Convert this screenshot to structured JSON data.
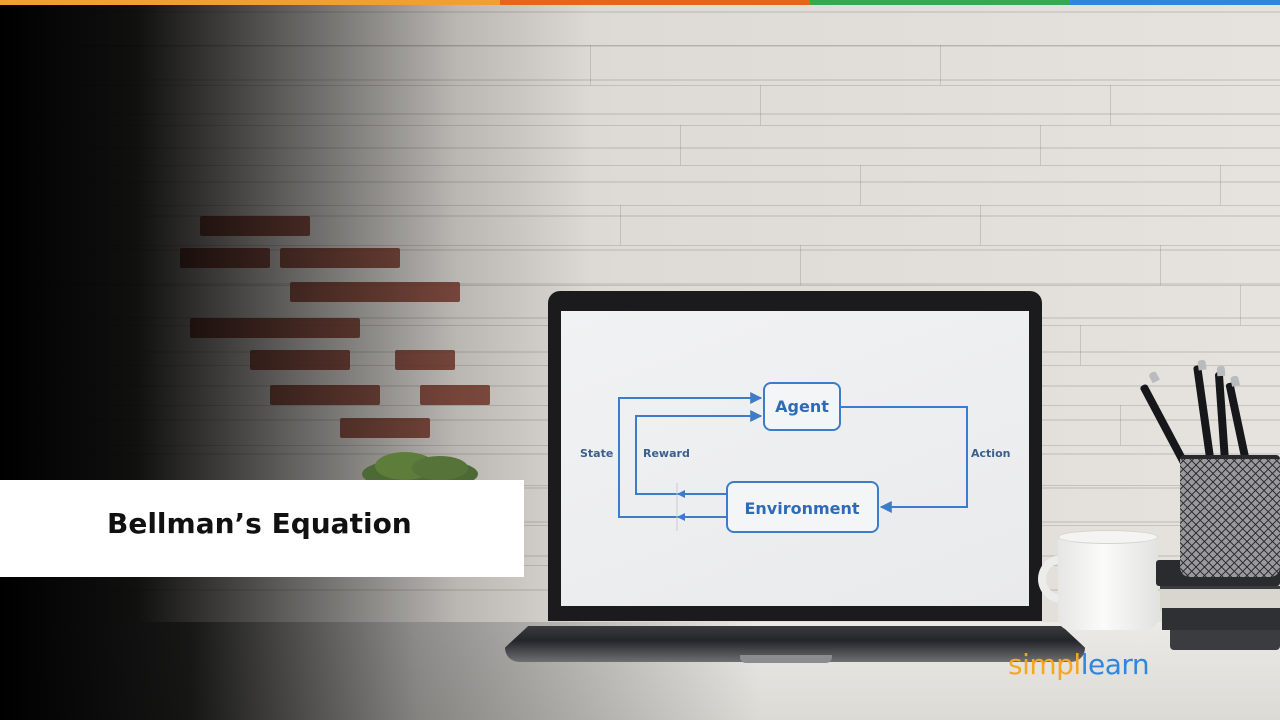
{
  "slide": {
    "title": "Bellman’s Equation"
  },
  "diagram": {
    "nodes": {
      "agent": "Agent",
      "environment": "Environment"
    },
    "labels": {
      "state": "State",
      "reward": "Reward",
      "action": "Action"
    },
    "colors": {
      "line": "#3d7cc9",
      "node_text": "#2f6bb5",
      "label_text": "#3b5f8c"
    }
  },
  "logo": {
    "part1": "simpl",
    "part2": "learn"
  },
  "colors": {
    "strip": [
      "#f0a030",
      "#e8641b",
      "#36a853",
      "#2e86de"
    ],
    "banner_bg": "#ffffff",
    "title_text": "#111111"
  }
}
